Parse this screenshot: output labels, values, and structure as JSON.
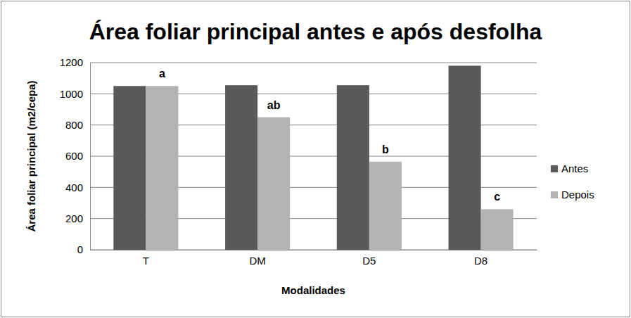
{
  "chart_data": {
    "type": "bar",
    "title": "Área foliar principal antes e após desfolha",
    "x_label": "Modalidades",
    "y_label": "Área foliar principal (m2/cepa)",
    "categories": [
      "T",
      "DM",
      "D5",
      "D8"
    ],
    "series": [
      {
        "name": "Antes",
        "color": "#595959",
        "values": [
          1050,
          1055,
          1055,
          1180
        ]
      },
      {
        "name": "Depois",
        "color": "#b3b3b3",
        "values": [
          1050,
          850,
          565,
          260
        ]
      }
    ],
    "annotations": [
      "a",
      "ab",
      "b",
      "c"
    ],
    "ylim": [
      0,
      1200
    ],
    "yticks": [
      0,
      200,
      400,
      600,
      800,
      1000,
      1200
    ],
    "grid": true,
    "legend": "right"
  }
}
